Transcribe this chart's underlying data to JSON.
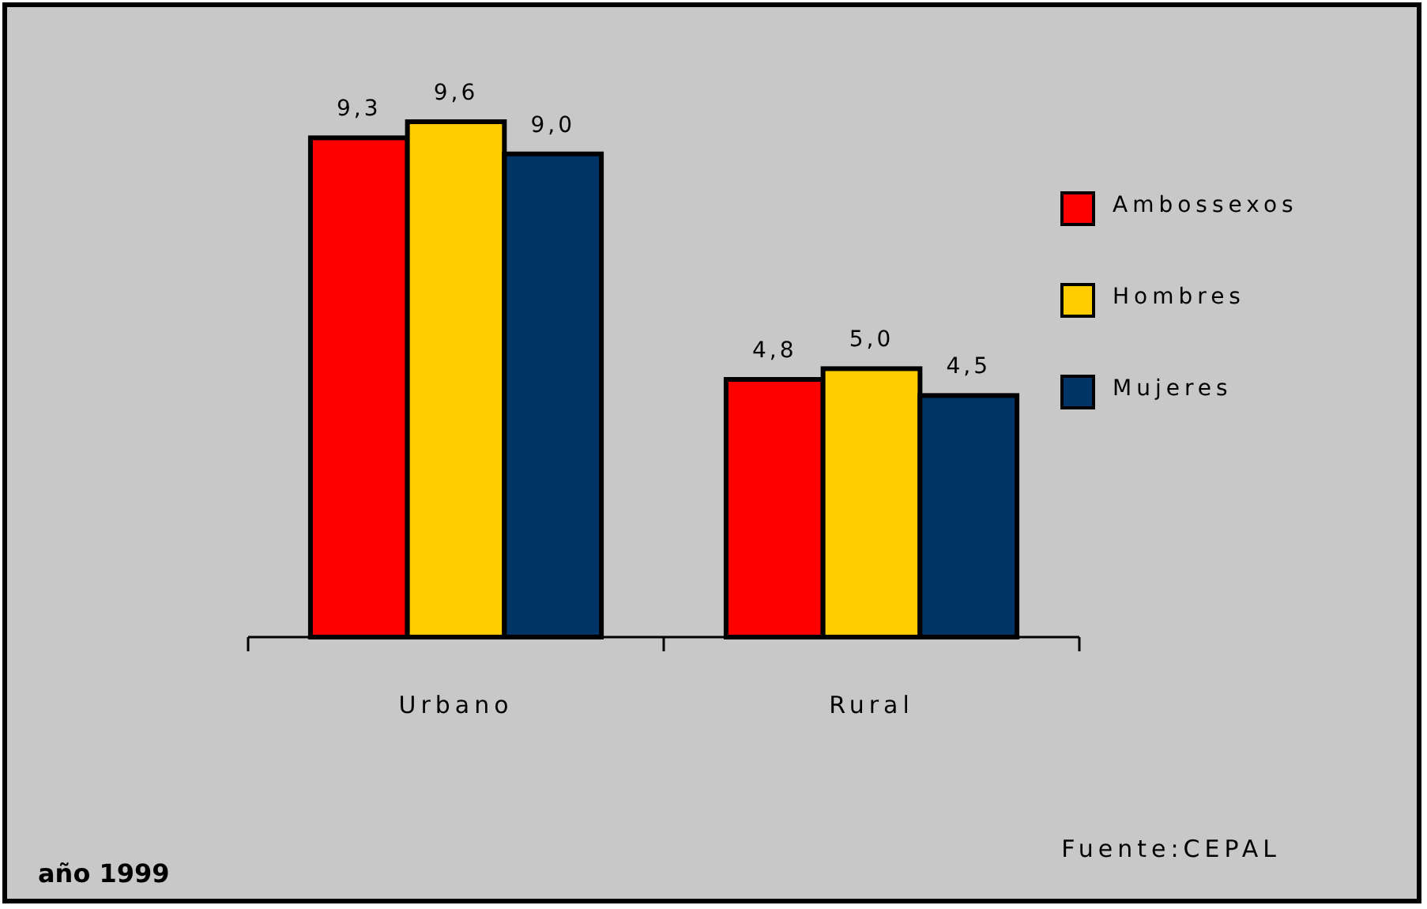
{
  "chart_data": {
    "type": "bar",
    "relative": false,
    "categories": [
      "Urbano",
      "Rural"
    ],
    "series": [
      {
        "name": "Ambossexos",
        "color": "#ff0000",
        "values": [
          9.3,
          4.8
        ],
        "value_labels": [
          "9,3",
          "4,8"
        ]
      },
      {
        "name": "Hombres",
        "color": "#ffcc00",
        "values": [
          9.6,
          5.0
        ],
        "value_labels": [
          "9,6",
          "5,0"
        ]
      },
      {
        "name": "Mujeres",
        "color": "#003366",
        "values": [
          9.0,
          4.5
        ],
        "value_labels": [
          "9,0",
          "4,5"
        ]
      }
    ],
    "legend": "right",
    "annotations": [
      "Fuente:CEPAL",
      "año 1999"
    ]
  }
}
